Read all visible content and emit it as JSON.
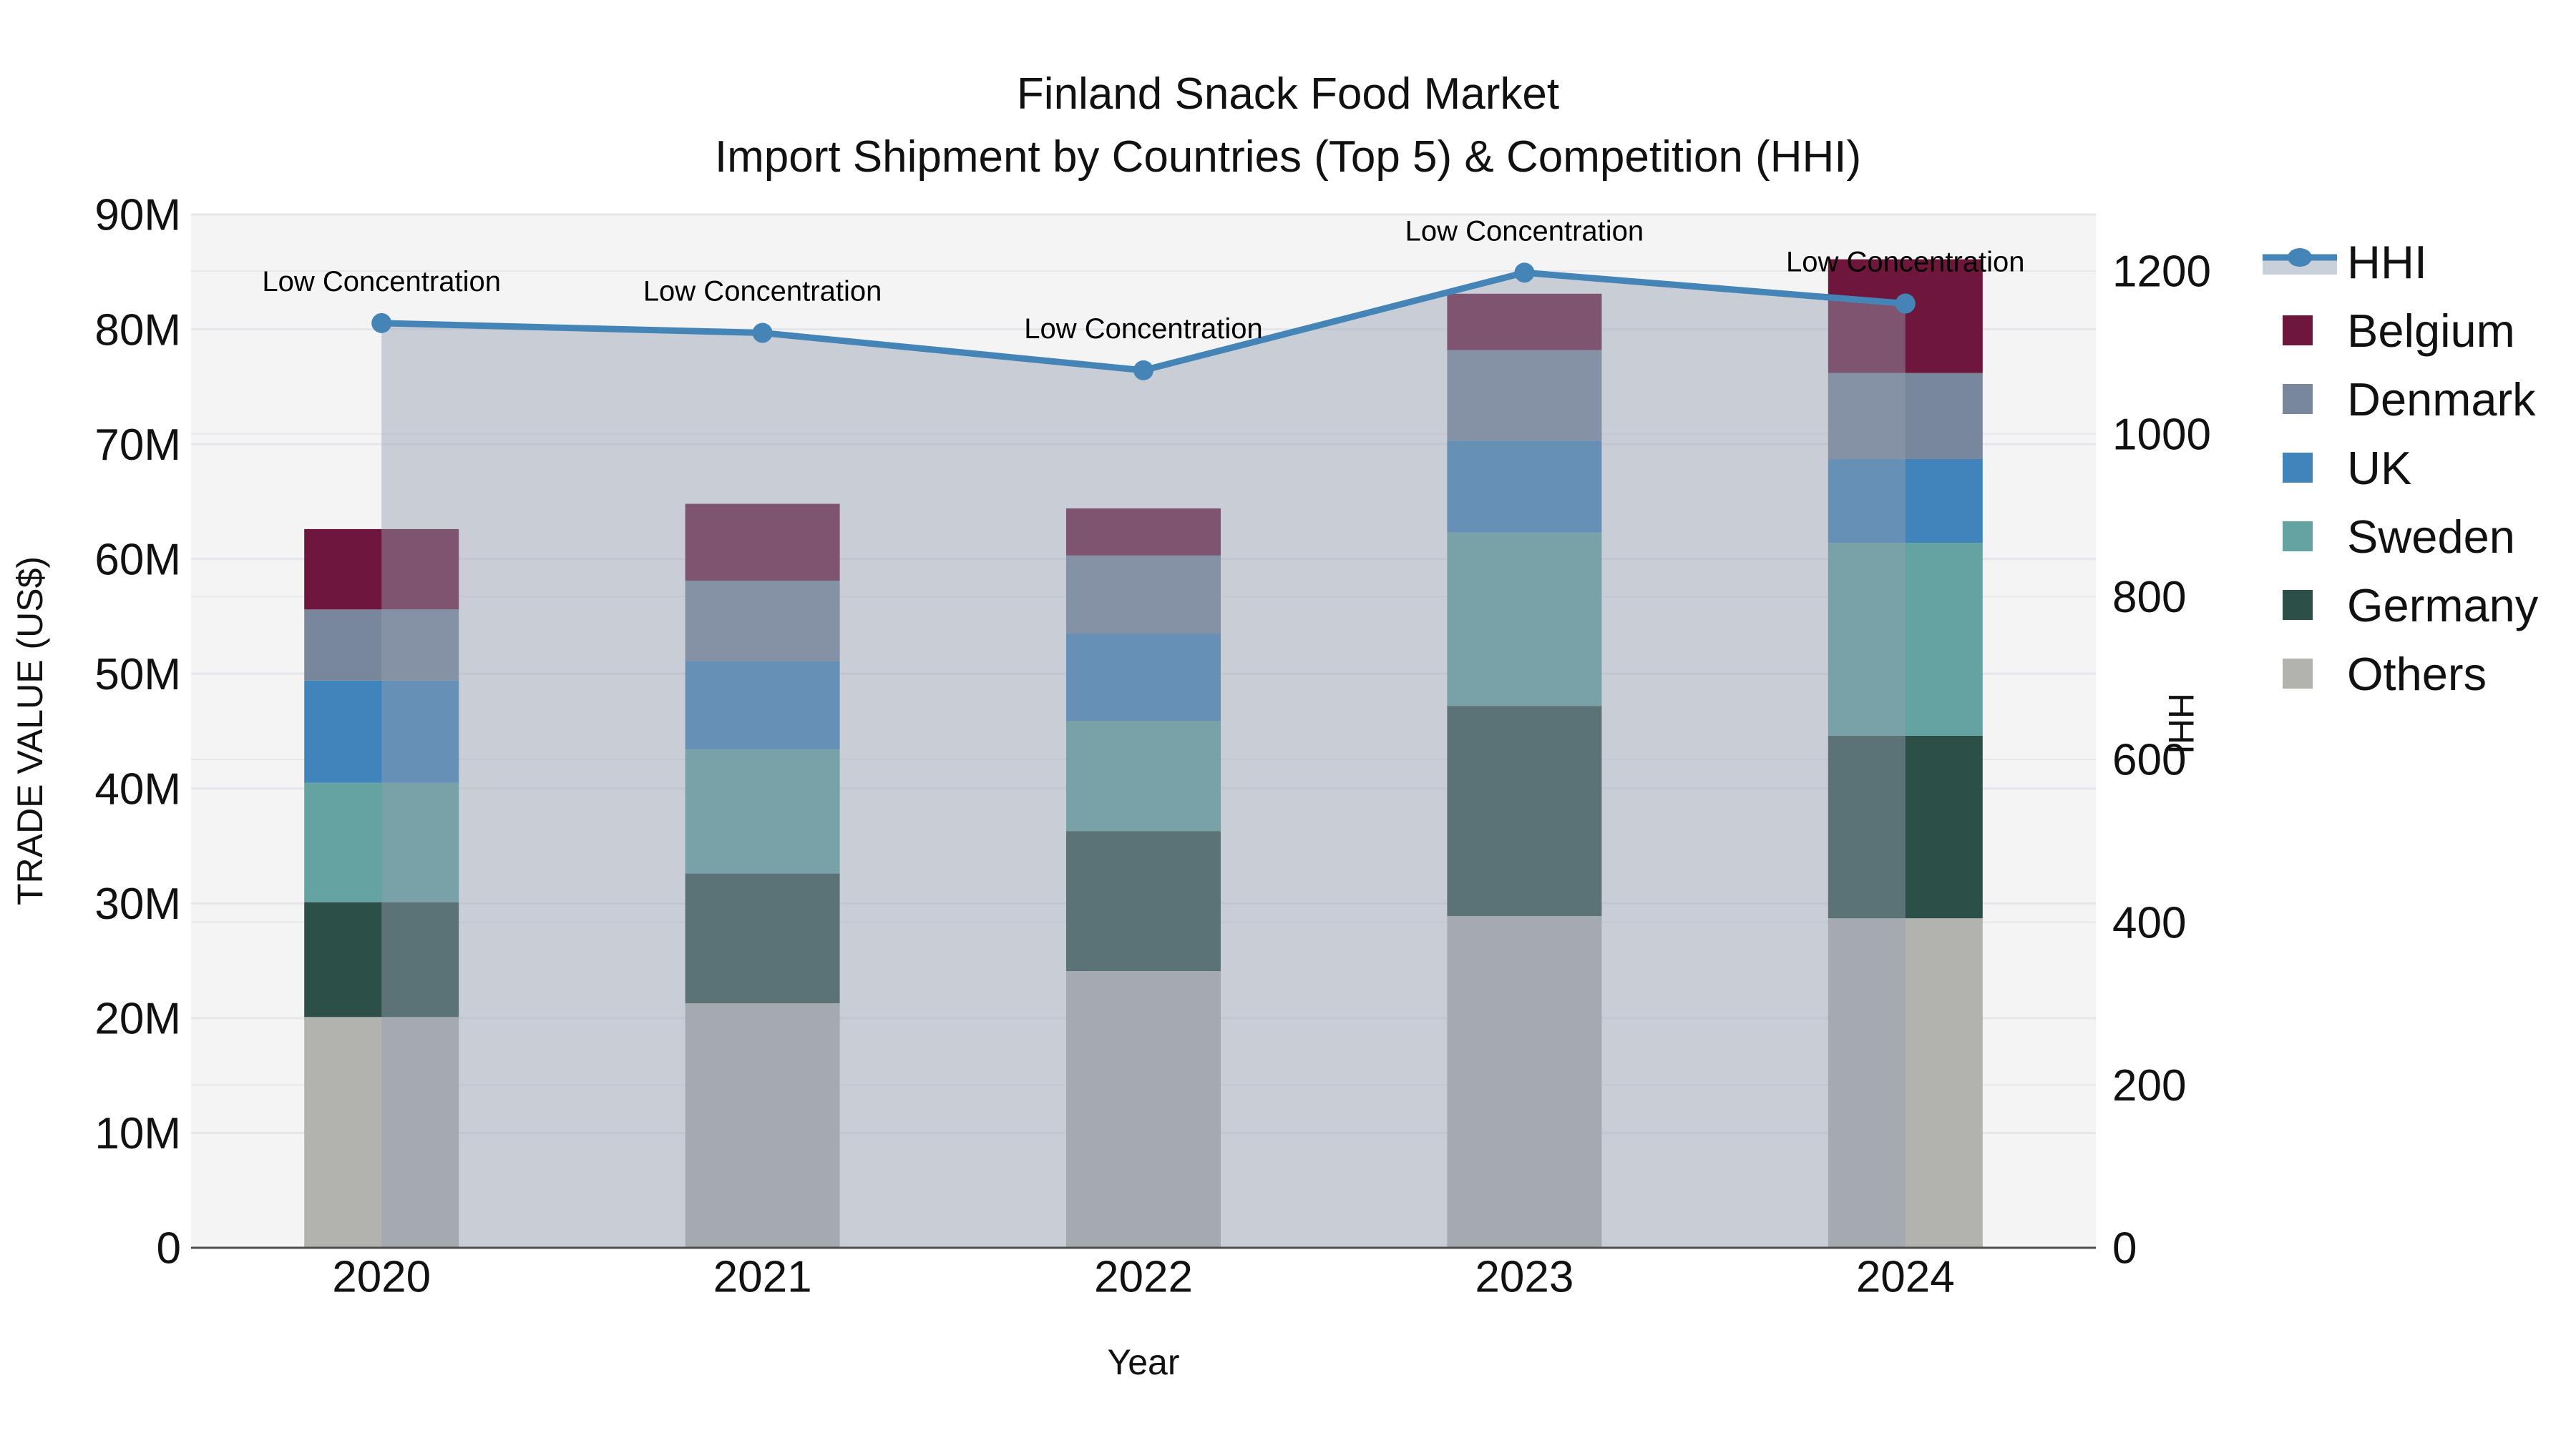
{
  "title": {
    "line1": "Finland Snack Food Market",
    "line2": "Import Shipment by Countries (Top 5) & Competition (HHI)"
  },
  "axes": {
    "left_title": "TRADE VALUE (US$)",
    "bottom_title": "Year",
    "right_title": "HHI",
    "left_tick_labels": [
      "0",
      "10M",
      "20M",
      "30M",
      "40M",
      "50M",
      "60M",
      "70M",
      "80M",
      "90M"
    ],
    "right_tick_labels": [
      "0",
      "200",
      "400",
      "600",
      "800",
      "1000",
      "1200"
    ]
  },
  "colors": {
    "plot_background": "#f4f4f4",
    "gridline": "#e5e5ea",
    "axis_line": "#4d4d4d",
    "hhi_line": "#4484b7",
    "hhi_area_fill": "rgba(148,160,178,0.45)",
    "legend_band": "#c9d0da",
    "text": "#111111"
  },
  "chart_data": {
    "type": "combo: stacked-bar + line-area",
    "categories": [
      "2020",
      "2021",
      "2022",
      "2023",
      "2024"
    ],
    "bar_unit": "M US$",
    "bar_series_bottom_to_top": [
      {
        "name": "Others",
        "color": "#b2b2af",
        "values": [
          20.1,
          21.3,
          24.1,
          28.9,
          28.7
        ]
      },
      {
        "name": "Germany",
        "color": "#2c4f47",
        "values": [
          10.0,
          11.3,
          12.2,
          18.3,
          15.9
        ]
      },
      {
        "name": "Sweden",
        "color": "#63a3a1",
        "values": [
          10.4,
          10.8,
          9.6,
          15.1,
          16.8
        ]
      },
      {
        "name": "UK",
        "color": "#4183bb",
        "values": [
          8.9,
          7.7,
          7.6,
          8.0,
          7.3
        ]
      },
      {
        "name": "Denmark",
        "color": "#78879b",
        "values": [
          6.2,
          7.0,
          6.8,
          7.9,
          7.5
        ]
      },
      {
        "name": "Belgium",
        "color": "#6e163b",
        "values": [
          7.0,
          6.7,
          4.1,
          4.9,
          9.9
        ]
      }
    ],
    "bar_totals": [
      62.6,
      64.8,
      64.4,
      83.1,
      86.1
    ],
    "line_series": {
      "name": "HHI",
      "color": "#4484b7",
      "values": [
        1136,
        1124,
        1078,
        1198,
        1160
      ]
    },
    "annotations": [
      {
        "text": "Low Concentration",
        "category": "2020"
      },
      {
        "text": "Low Concentration",
        "category": "2021"
      },
      {
        "text": "Low Concentration",
        "category": "2022"
      },
      {
        "text": "Low Concentration",
        "category": "2023"
      },
      {
        "text": "Low Concentration",
        "category": "2024"
      }
    ],
    "left_axis": {
      "label": "TRADE VALUE (US$)",
      "min": 0,
      "max": 90,
      "tick_step": 10,
      "unit": "M"
    },
    "right_axis": {
      "label": "HHI",
      "min": 0,
      "tick_max": 1200,
      "tick_step": 200
    },
    "legend_position": "right",
    "grid": true
  },
  "legend": {
    "items": [
      {
        "label": "HHI",
        "type": "line",
        "color": "#4484b7"
      },
      {
        "label": "Belgium",
        "type": "square",
        "color": "#6e163b"
      },
      {
        "label": "Denmark",
        "type": "square",
        "color": "#78879b"
      },
      {
        "label": "UK",
        "type": "square",
        "color": "#4183bb"
      },
      {
        "label": "Sweden",
        "type": "square",
        "color": "#63a3a1"
      },
      {
        "label": "Germany",
        "type": "square",
        "color": "#2c4f47"
      },
      {
        "label": "Others",
        "type": "square",
        "color": "#b2b2af"
      }
    ]
  }
}
